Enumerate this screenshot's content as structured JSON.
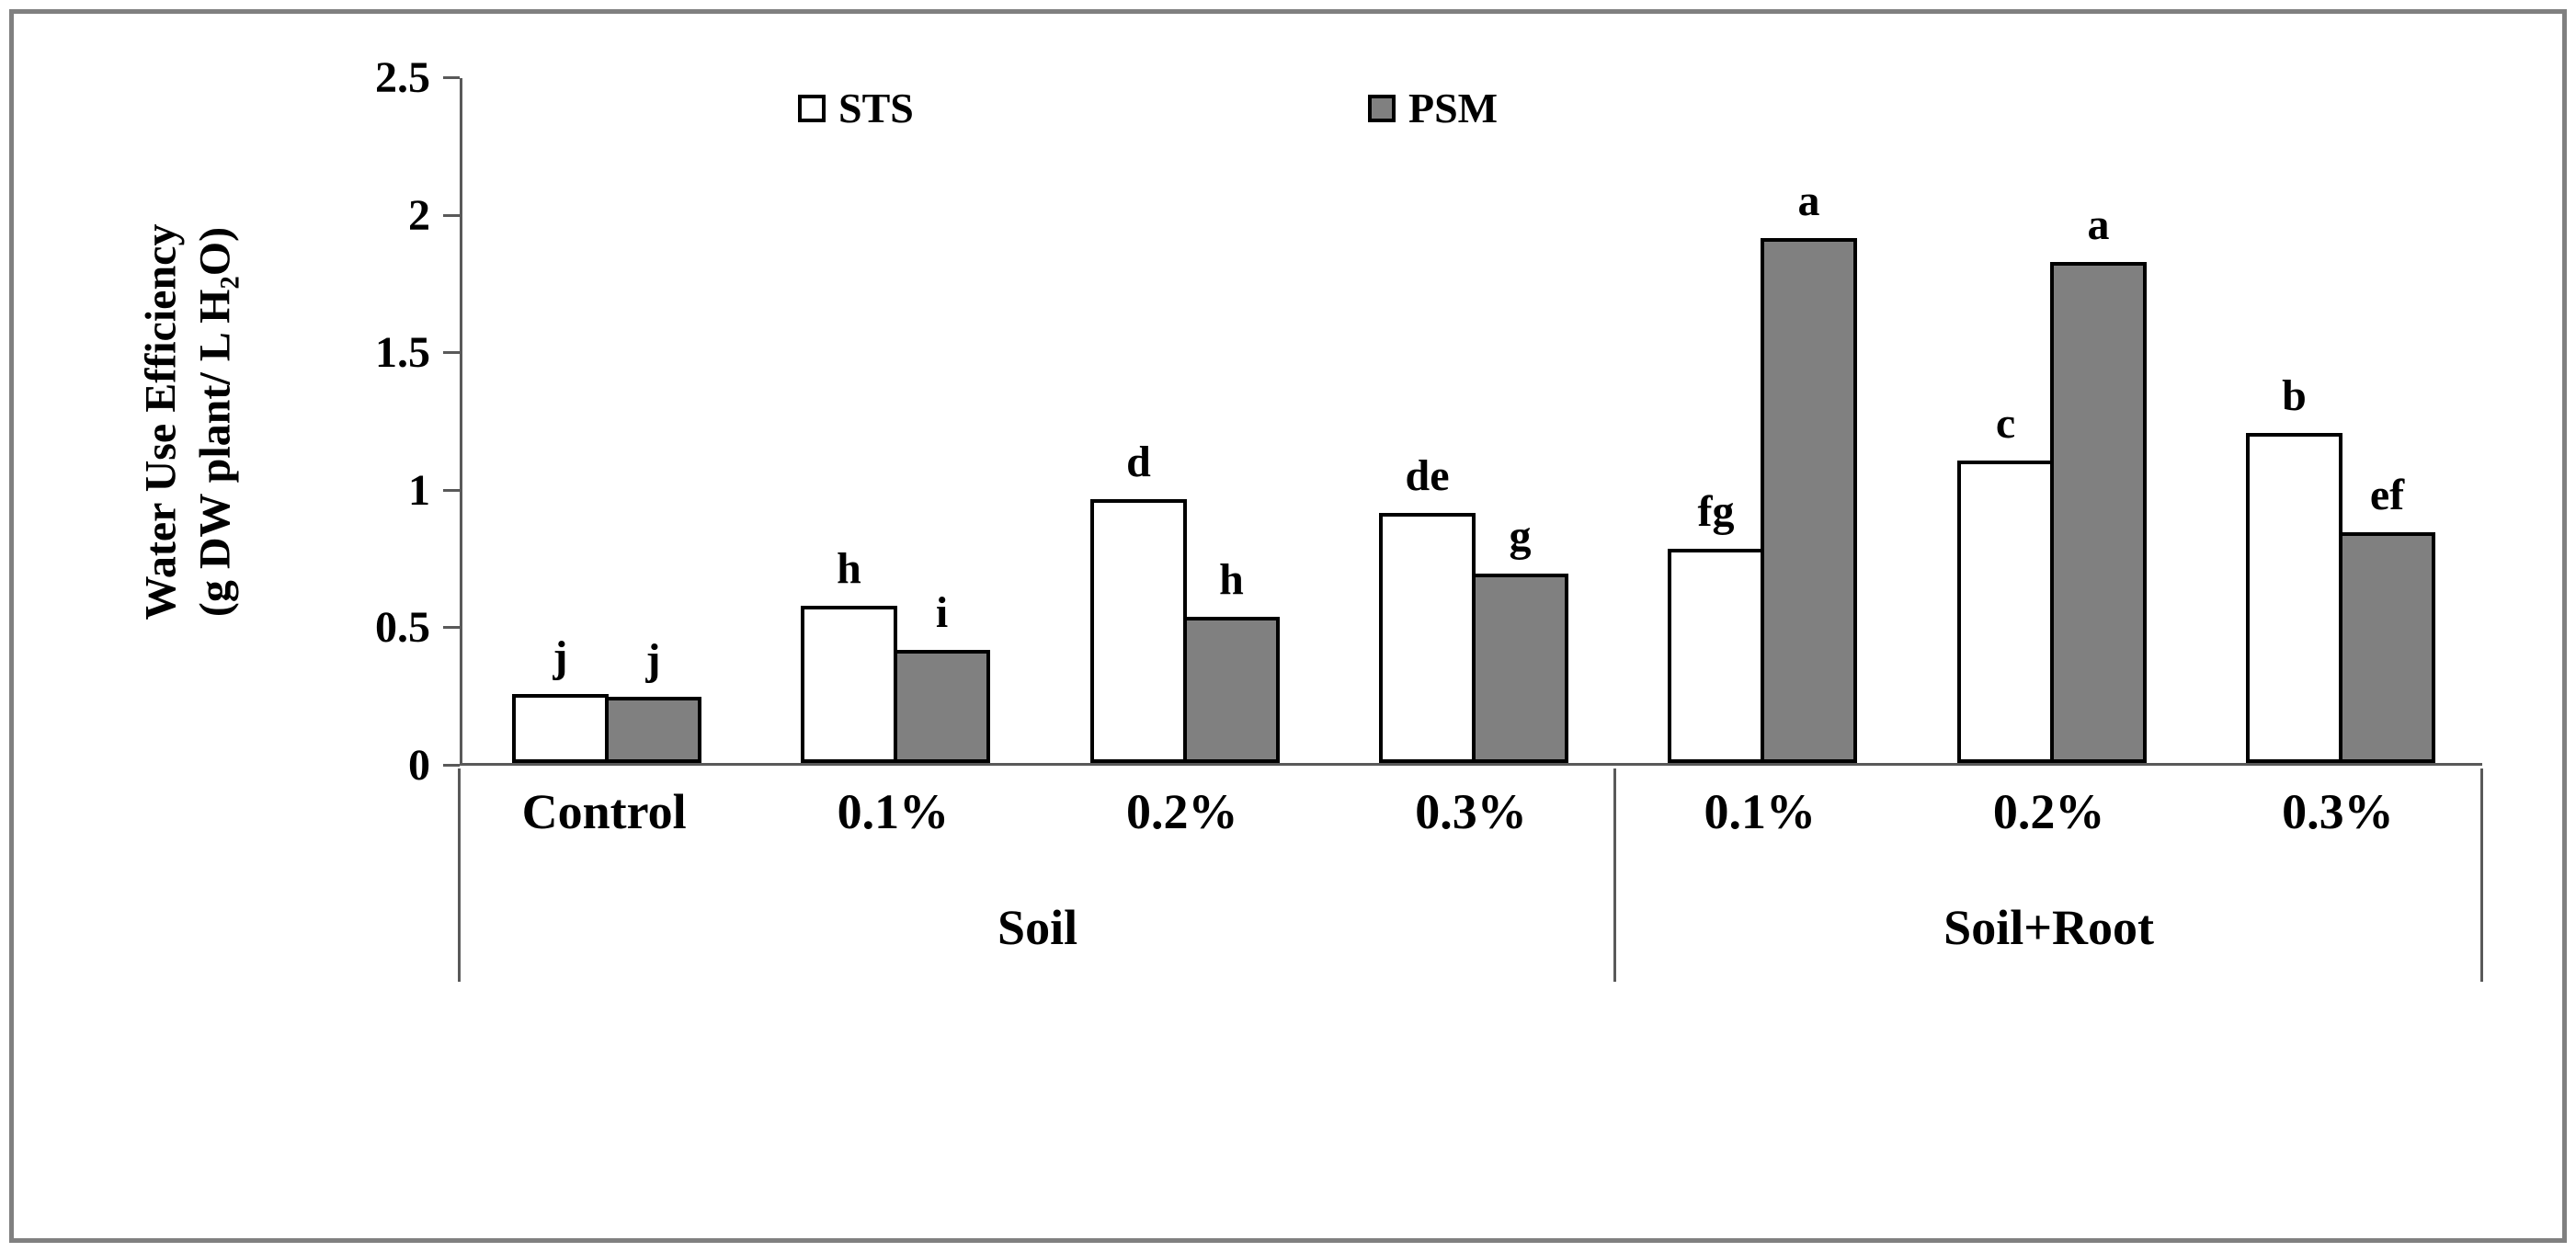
{
  "figure": {
    "background": "#ffffff",
    "frame_color": "#808080",
    "axis_color": "#595959"
  },
  "chart_data": {
    "type": "bar",
    "title": "",
    "ylabel_lines": [
      "Water Use Efficiency",
      "(g DW plant/ L H₂O)"
    ],
    "xlabel": "",
    "ylim": [
      0,
      2.5
    ],
    "grid": false,
    "legend_position": "top",
    "yticks": [
      {
        "value": 0,
        "label": "0"
      },
      {
        "value": 0.5,
        "label": "0.5"
      },
      {
        "value": 1,
        "label": "1"
      },
      {
        "value": 1.5,
        "label": "1.5"
      },
      {
        "value": 2,
        "label": "2"
      },
      {
        "value": 2.5,
        "label": "2.5"
      }
    ],
    "categories": [
      "Control",
      "0.1%",
      "0.2%",
      "0.3%",
      "0.1%",
      "0.2%",
      "0.3%"
    ],
    "category_groups": [
      {
        "label": "Soil",
        "span": 4
      },
      {
        "label": "Soil+Root",
        "span": 3
      }
    ],
    "series": [
      {
        "name": "STS",
        "fill": "#ffffff",
        "border": "#000000",
        "values": [
          0.25,
          0.57,
          0.96,
          0.91,
          0.78,
          1.1,
          1.2
        ],
        "sig_letters": [
          "j",
          "h",
          "d",
          "de",
          "fg",
          "c",
          "b"
        ]
      },
      {
        "name": "PSM",
        "fill": "#808080",
        "border": "#000000",
        "values": [
          0.24,
          0.41,
          0.53,
          0.69,
          1.91,
          1.82,
          0.84
        ],
        "sig_letters": [
          "j",
          "i",
          "h",
          "g",
          "a",
          "a",
          "ef"
        ]
      }
    ]
  }
}
